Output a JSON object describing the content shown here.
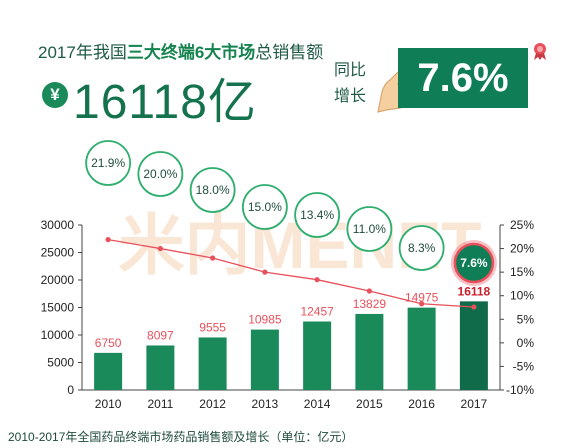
{
  "header": {
    "title_prefix": "2017年我国",
    "title_emphasis": "三大终端6大市场",
    "title_suffix": "总销售额",
    "currency_symbol": "¥",
    "total_value": "16118亿",
    "yoy_label_line1": "同比",
    "yoy_label_line2": "增长",
    "yoy_value": "7.6%"
  },
  "watermark": "米内MENET",
  "footer": "2010-2017年全国药品终端市场药品销售额及增长（单位：亿元）",
  "colors": {
    "bar": "#1a8a5a",
    "bar_2017": "#0f6b49",
    "growth_line": "#e8505b",
    "bubble_border": "#2fae6e",
    "highlight_bubble": "#0f7d56",
    "highlight_ring": "#e8505b"
  },
  "chart_data": {
    "type": "bar",
    "categories": [
      "2010",
      "2011",
      "2012",
      "2013",
      "2014",
      "2015",
      "2016",
      "2017"
    ],
    "series": [
      {
        "values": [
          6750,
          8097,
          9555,
          10985,
          12457,
          13829,
          14975,
          16118
        ]
      },
      {
        "values": [
          21.9,
          20.0,
          18.0,
          15.0,
          13.4,
          11.0,
          8.3,
          7.6
        ]
      }
    ],
    "bar_labels": [
      "6750",
      "8097",
      "9555",
      "10985",
      "12457",
      "13829",
      "14975",
      "16118"
    ],
    "growth_labels": [
      "21.9%",
      "20.0%",
      "18.0%",
      "15.0%",
      "13.4%",
      "11.0%",
      "8.3%",
      "7.6%"
    ],
    "y_left": {
      "ticks": [
        "0",
        "5000",
        "10000",
        "15000",
        "20000",
        "25000",
        "30000"
      ],
      "ylim": [
        0,
        30000
      ]
    },
    "y_right": {
      "ticks": [
        "-10%",
        "-5%",
        "0%",
        "5%",
        "10%",
        "15%",
        "20%",
        "25%"
      ],
      "ylim": [
        -10,
        25
      ]
    },
    "grid": false
  }
}
